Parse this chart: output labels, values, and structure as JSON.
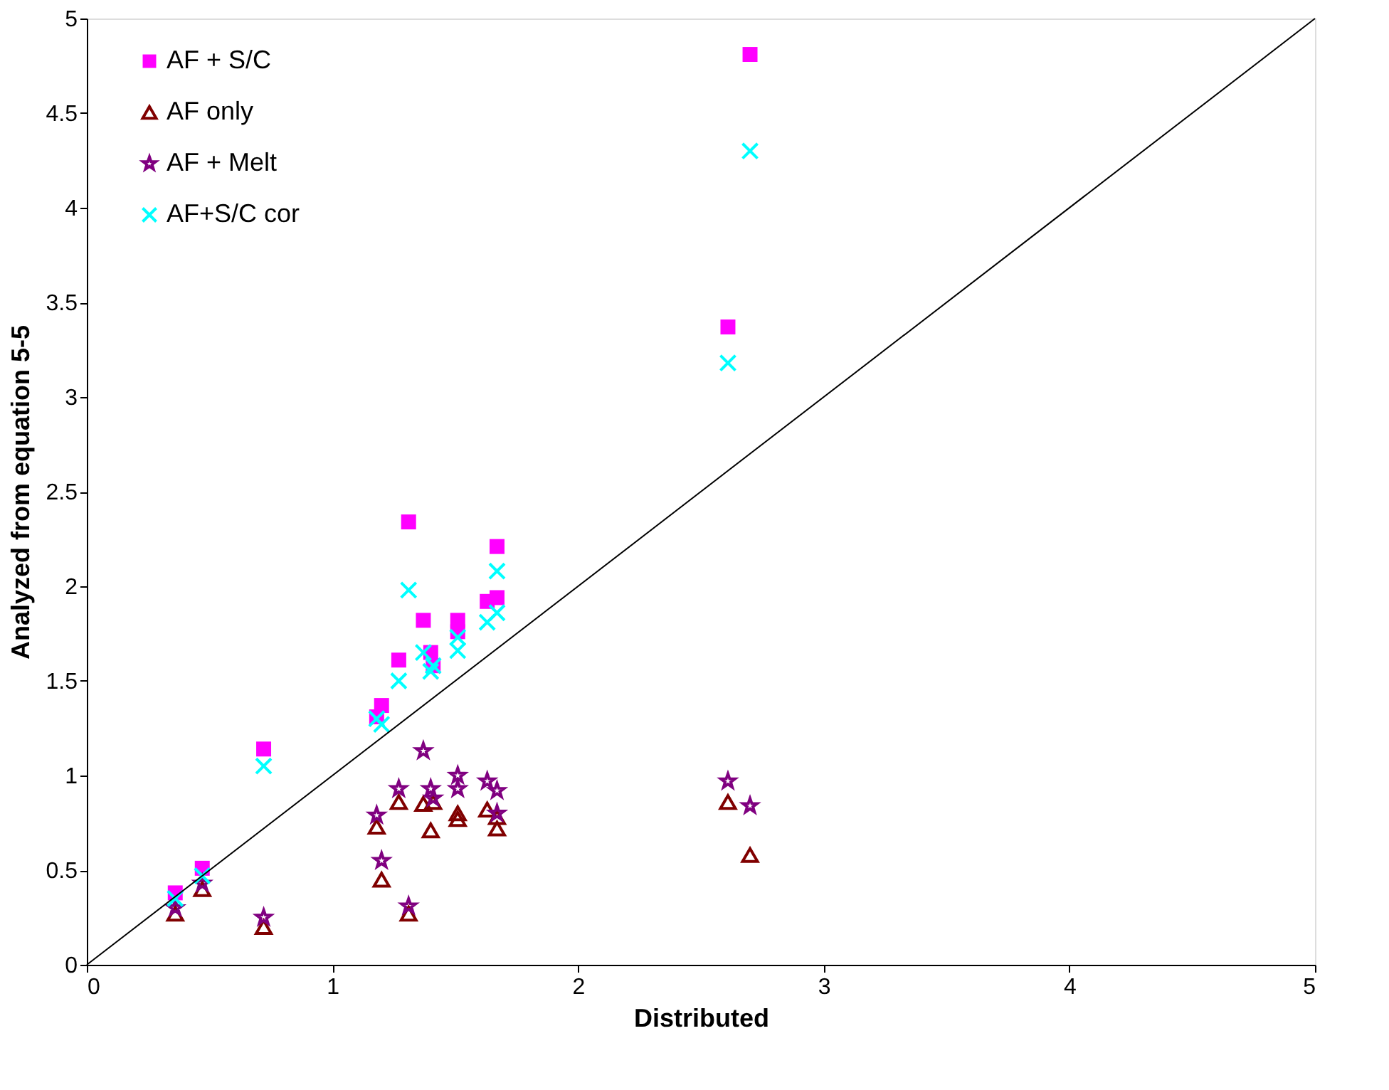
{
  "chart_data": {
    "type": "scatter",
    "xlabel": "Distributed",
    "ylabel": "Analyzed from equation 5-5",
    "xlim": [
      0,
      5
    ],
    "ylim": [
      0,
      5
    ],
    "xticks": [
      0,
      1,
      2,
      3,
      4,
      5
    ],
    "yticks": [
      0,
      0.5,
      1,
      1.5,
      2,
      2.5,
      3,
      3.5,
      4,
      4.5,
      5
    ],
    "grid": false,
    "legend": "top left",
    "x": [
      0.36,
      0.47,
      0.72,
      1.18,
      1.2,
      1.27,
      1.31,
      1.37,
      1.4,
      1.41,
      1.51,
      1.51,
      1.63,
      1.67,
      1.67,
      2.61,
      2.7
    ],
    "series": [
      {
        "name": "AF + S/C",
        "color": "#ff00ff",
        "marker": "square",
        "values": [
          0.38,
          0.51,
          1.14,
          1.31,
          1.37,
          1.61,
          2.34,
          1.82,
          1.65,
          1.58,
          1.82,
          1.76,
          1.92,
          1.94,
          2.21,
          3.37,
          4.81
        ]
      },
      {
        "name": "AF only",
        "color": "#800000",
        "marker": "triangle",
        "values": [
          0.27,
          0.4,
          0.2,
          0.73,
          0.45,
          0.86,
          0.27,
          0.85,
          0.71,
          0.86,
          0.77,
          0.8,
          0.82,
          0.72,
          0.78,
          0.86,
          0.58
        ]
      },
      {
        "name": "AF + Melt",
        "color": "#800080",
        "marker": "star",
        "values": [
          0.3,
          0.43,
          0.25,
          0.79,
          0.55,
          0.93,
          0.31,
          1.13,
          0.93,
          0.88,
          1.0,
          0.93,
          0.97,
          0.92,
          0.8,
          0.97,
          0.84
        ]
      },
      {
        "name": "AF+S/C cor",
        "color": "#00ffff",
        "marker": "cross",
        "values": [
          0.35,
          0.47,
          1.05,
          1.3,
          1.27,
          1.5,
          1.98,
          1.65,
          1.55,
          1.58,
          1.73,
          1.66,
          1.81,
          1.86,
          2.08,
          3.18,
          4.3
        ]
      },
      {
        "type": "line",
        "color": "#000000",
        "marker": "none",
        "x": [
          0,
          5
        ],
        "values": [
          0,
          5
        ]
      }
    ]
  }
}
